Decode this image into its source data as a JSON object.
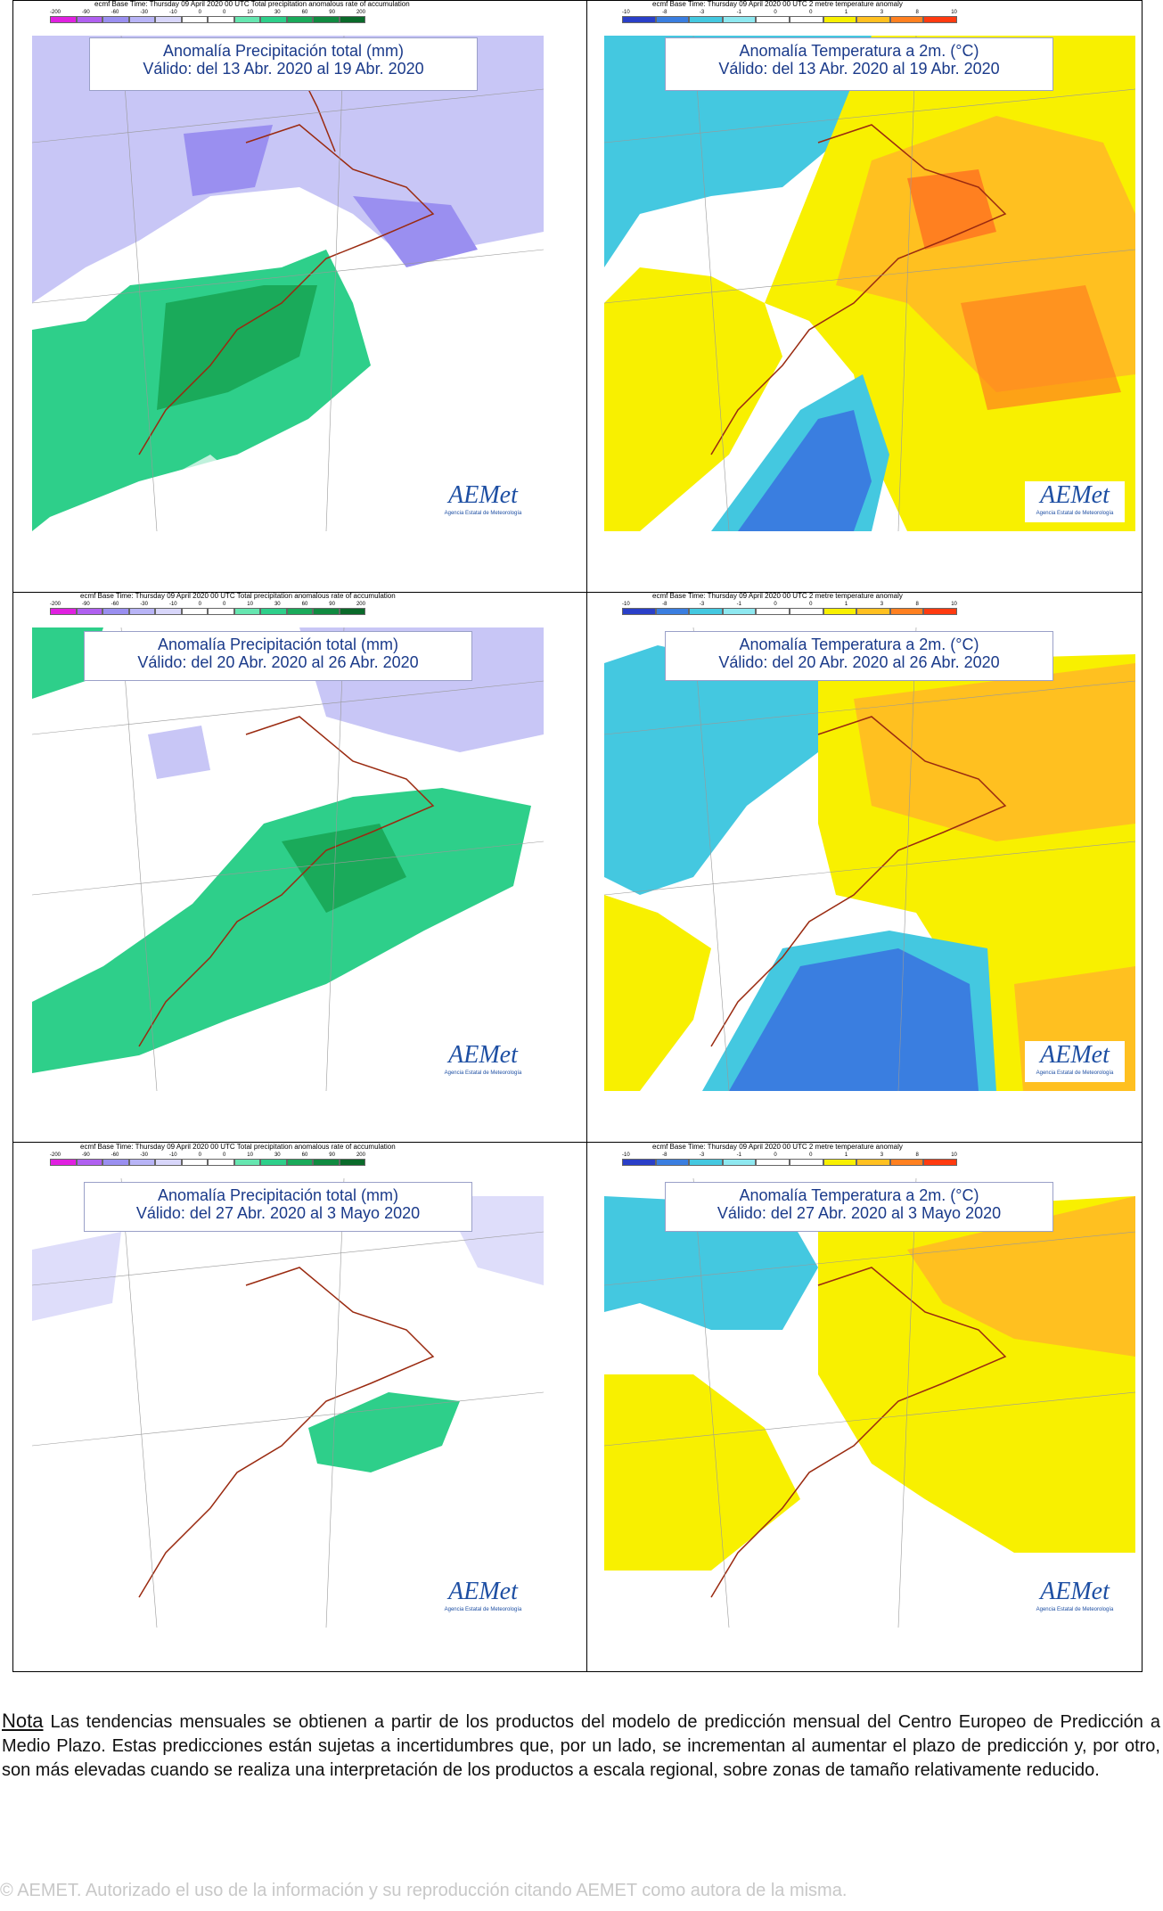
{
  "panels": [
    {
      "kind": "precip",
      "header": "ecmf Base Time: Thursday 09 April 2020 00 UTC Total precipitation anomalous rate of accumulation",
      "ticks": [
        "-200",
        "-90",
        "-60",
        "-30",
        "-10",
        "0",
        "0",
        "10",
        "30",
        "60",
        "90",
        "200"
      ],
      "title_line1": "Anomalía Precipitación total (mm)",
      "title_line2": "Válido: del 13 Abr. 2020 al 19 Abr. 2020"
    },
    {
      "kind": "temp",
      "header": "ecmf Base Time: Thursday 09 April 2020 00 UTC 2 metre temperature anomaly",
      "ticks": [
        "-10",
        "-8",
        "-3",
        "-1",
        "0",
        "0",
        "1",
        "3",
        "8",
        "10"
      ],
      "title_line1": "Anomalía Temperatura a 2m. (°C)",
      "title_line2": "Válido: del 13 Abr. 2020 al 19 Abr. 2020"
    },
    {
      "kind": "precip",
      "header": "ecmf Base Time: Thursday 09 April 2020 00 UTC Total precipitation anomalous rate of accumulation",
      "ticks": [
        "-200",
        "-90",
        "-60",
        "-30",
        "-10",
        "0",
        "0",
        "10",
        "30",
        "60",
        "90",
        "200"
      ],
      "title_line1": "Anomalía Precipitación total (mm)",
      "title_line2": "Válido: del 20 Abr. 2020 al 26 Abr. 2020"
    },
    {
      "kind": "temp",
      "header": "ecmf Base Time: Thursday 09 April 2020 00 UTC 2 metre temperature anomaly",
      "ticks": [
        "-10",
        "-8",
        "-3",
        "-1",
        "0",
        "0",
        "1",
        "3",
        "8",
        "10"
      ],
      "title_line1": "Anomalía Temperatura a 2m. (°C)",
      "title_line2": "Válido: del 20 Abr. 2020 al 26 Abr. 2020"
    },
    {
      "kind": "precip",
      "header": "ecmf Base Time: Thursday 09 April 2020 00 UTC Total precipitation anomalous rate of accumulation",
      "ticks": [
        "-200",
        "-90",
        "-60",
        "-30",
        "-10",
        "0",
        "0",
        "10",
        "30",
        "60",
        "90",
        "200"
      ],
      "title_line1": "Anomalía Precipitación total (mm)",
      "title_line2": "Válido: del 27 Abr. 2020 al 3 Mayo 2020"
    },
    {
      "kind": "temp",
      "header": "ecmf Base Time: Thursday 09 April 2020 00 UTC 2 metre temperature anomaly",
      "ticks": [
        "-10",
        "-8",
        "-3",
        "-1",
        "0",
        "0",
        "1",
        "3",
        "8",
        "10"
      ],
      "title_line1": "Anomalía Temperatura a 2m. (°C)",
      "title_line2": "Válido: del 27 Abr. 2020 al 3 Mayo 2020"
    }
  ],
  "logo": {
    "text": "AEMet",
    "subtitle": "Agencia Estatal de Meteorología"
  },
  "colors": {
    "precip_scale": [
      "#e020e0",
      "#b060f0",
      "#9a8ff0",
      "#b8b4f6",
      "#d8d6fa",
      "#ffffff",
      "#ffffff",
      "#66e6b0",
      "#2ecf8a",
      "#1aaa5a",
      "#108a40",
      "#0a6a2a"
    ],
    "temp_scale": [
      "#2a3fc8",
      "#3a7ee0",
      "#44c8e0",
      "#8ee8f0",
      "#ffffff",
      "#ffffff",
      "#f8f000",
      "#ffc020",
      "#ff8020",
      "#ff3a10"
    ],
    "ocean_border": "#9a2a10",
    "title_text": "#1a3a8a"
  },
  "note": {
    "label": "Nota",
    "text": " Las tendencias mensuales se obtienen a partir de los productos del modelo de predicción mensual del Centro Europeo de Predicción a Medio Plazo. Estas predicciones están sujetas a incertidumbres que, por un lado, se incrementan al aumentar el plazo de predicción y, por otro, son más elevadas cuando se realiza una interpretación de los productos a escala regional, sobre zonas de tamaño relativamente reducido."
  },
  "copyright": "© AEMET. Autorizado el uso de la información y su reproducción citando AEMET como autora de la misma."
}
